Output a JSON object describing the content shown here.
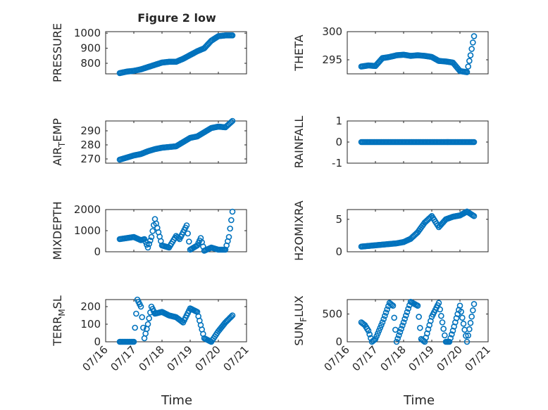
{
  "figure": {
    "title": "Figure 2 low",
    "xlabel": "Time",
    "x_ticks": [
      "07/16",
      "07/17",
      "07/18",
      "07/19",
      "07/20",
      "07/21"
    ],
    "marker_color": "#0072BD"
  },
  "chart_data": [
    {
      "type": "scatter",
      "id": "pressure",
      "ylabel": "PRESSURE",
      "ylim": [
        730,
        1010
      ],
      "yticks": [
        800,
        900,
        1000
      ],
      "grid": true,
      "x": [
        "07/16 12:00",
        "07/16 18:00",
        "07/17 00:00",
        "07/17 06:00",
        "07/17 12:00",
        "07/17 18:00",
        "07/18 00:00",
        "07/18 06:00",
        "07/18 12:00",
        "07/18 18:00",
        "07/19 00:00",
        "07/19 06:00",
        "07/19 12:00",
        "07/19 18:00",
        "07/20 00:00",
        "07/20 06:00",
        "07/20 12:00"
      ],
      "values": [
        735,
        745,
        750,
        760,
        775,
        790,
        805,
        810,
        810,
        830,
        855,
        880,
        900,
        950,
        980,
        985,
        985
      ]
    },
    {
      "type": "scatter",
      "id": "theta",
      "ylabel": "THETA",
      "ylim": [
        292.5,
        300
      ],
      "yticks": [
        295,
        300
      ],
      "grid": true,
      "x": [
        "07/16 12:00",
        "07/16 18:00",
        "07/17 00:00",
        "07/17 06:00",
        "07/17 12:00",
        "07/17 18:00",
        "07/18 00:00",
        "07/18 06:00",
        "07/18 12:00",
        "07/18 18:00",
        "07/19 00:00",
        "07/19 06:00",
        "07/19 12:00",
        "07/19 18:00",
        "07/20 00:00",
        "07/20 06:00",
        "07/20 09:00",
        "07/20 12:00"
      ],
      "values": [
        293.8,
        294.0,
        293.9,
        295.3,
        295.5,
        295.8,
        295.9,
        295.7,
        295.8,
        295.7,
        295.5,
        294.8,
        294.7,
        294.5,
        293.0,
        292.8,
        295.8,
        299.2
      ]
    },
    {
      "type": "scatter",
      "id": "air_temp",
      "ylabel": "AIR",
      "ylabel_sub": "T",
      "ylabel_tail": "EMP",
      "ylim": [
        267,
        297
      ],
      "yticks": [
        270,
        280,
        290
      ],
      "grid": true,
      "x": [
        "07/16 12:00",
        "07/16 18:00",
        "07/17 00:00",
        "07/17 06:00",
        "07/17 12:00",
        "07/17 18:00",
        "07/18 00:00",
        "07/18 06:00",
        "07/18 12:00",
        "07/18 18:00",
        "07/19 00:00",
        "07/19 06:00",
        "07/19 12:00",
        "07/19 18:00",
        "07/20 00:00",
        "07/20 06:00",
        "07/20 12:00"
      ],
      "values": [
        269.5,
        271.0,
        272.5,
        273.5,
        275.5,
        277.0,
        278.0,
        278.5,
        279.0,
        282.0,
        285.0,
        286.0,
        289.0,
        292.0,
        293.0,
        292.5,
        297.0
      ]
    },
    {
      "type": "scatter",
      "id": "rainfall",
      "ylabel": "RAINFALL",
      "ylim": [
        -1,
        1
      ],
      "yticks": [
        -1,
        0,
        1
      ],
      "grid": true,
      "x": [
        "07/16 12:00",
        "07/17 00:00",
        "07/17 12:00",
        "07/18 00:00",
        "07/18 12:00",
        "07/19 00:00",
        "07/19 12:00",
        "07/20 00:00",
        "07/20 12:00"
      ],
      "values": [
        0,
        0,
        0,
        0,
        0,
        0,
        0,
        0,
        0
      ]
    },
    {
      "type": "scatter",
      "id": "mixdepth",
      "ylabel": "MIXDEPTH",
      "ylim": [
        0,
        2000
      ],
      "yticks": [
        0,
        1000,
        2000
      ],
      "grid": true,
      "x": [
        "07/16 12:00",
        "07/16 18:00",
        "07/17 00:00",
        "07/17 06:00",
        "07/17 09:00",
        "07/17 12:00",
        "07/17 15:00",
        "07/17 18:00",
        "07/18 00:00",
        "07/18 06:00",
        "07/18 12:00",
        "07/18 15:00",
        "07/18 21:00",
        "07/19 00:00",
        "07/19 06:00",
        "07/19 09:00",
        "07/19 12:00",
        "07/19 18:00",
        "07/20 00:00",
        "07/20 06:00",
        "07/20 09:00",
        "07/20 12:00"
      ],
      "values": [
        600,
        650,
        700,
        550,
        600,
        200,
        700,
        1550,
        300,
        200,
        750,
        600,
        1250,
        100,
        300,
        650,
        50,
        200,
        100,
        100,
        700,
        1900
      ]
    },
    {
      "type": "scatter",
      "id": "h2omixra",
      "ylabel": "H2OMIXRA",
      "ylim": [
        0,
        6.5
      ],
      "yticks": [
        0,
        5
      ],
      "grid": true,
      "x": [
        "07/16 12:00",
        "07/16 18:00",
        "07/17 00:00",
        "07/17 06:00",
        "07/17 12:00",
        "07/17 18:00",
        "07/18 00:00",
        "07/18 06:00",
        "07/18 12:00",
        "07/18 18:00",
        "07/19 00:00",
        "07/19 06:00",
        "07/19 12:00",
        "07/19 18:00",
        "07/20 00:00",
        "07/20 06:00",
        "07/20 12:00"
      ],
      "values": [
        0.8,
        0.9,
        1.0,
        1.1,
        1.2,
        1.3,
        1.5,
        2.0,
        3.0,
        4.5,
        5.5,
        3.8,
        5.0,
        5.4,
        5.6,
        6.2,
        5.5
      ]
    },
    {
      "type": "scatter",
      "id": "terr_msl",
      "ylabel": "TERR",
      "ylabel_sub": "M",
      "ylabel_tail": "SL",
      "ylim": [
        0,
        240
      ],
      "yticks": [
        0,
        100,
        200
      ],
      "grid": true,
      "x": [
        "07/16 12:00",
        "07/16 18:00",
        "07/17 00:00",
        "07/17 03:00",
        "07/17 06:00",
        "07/17 09:00",
        "07/17 12:00",
        "07/17 15:00",
        "07/17 18:00",
        "07/18 00:00",
        "07/18 06:00",
        "07/18 12:00",
        "07/18 18:00",
        "07/19 00:00",
        "07/19 06:00",
        "07/19 12:00",
        "07/19 18:00",
        "07/20 00:00",
        "07/20 06:00",
        "07/20 12:00"
      ],
      "values": [
        0,
        0,
        0,
        240,
        200,
        20,
        100,
        200,
        160,
        170,
        150,
        140,
        110,
        190,
        170,
        20,
        0,
        60,
        110,
        150
      ]
    },
    {
      "type": "scatter",
      "id": "sun_flux",
      "ylabel": "SUN",
      "ylabel_sub": "F",
      "ylabel_tail": "LUX",
      "ylim": [
        0,
        760
      ],
      "yticks": [
        0,
        500
      ],
      "grid": true,
      "x": [
        "07/16 12:00",
        "07/16 15:00",
        "07/16 18:00",
        "07/16 21:00",
        "07/17 00:00",
        "07/17 06:00",
        "07/17 12:00",
        "07/17 15:00",
        "07/17 18:00",
        "07/18 00:00",
        "07/18 06:00",
        "07/18 12:00",
        "07/18 15:00",
        "07/18 18:00",
        "07/19 00:00",
        "07/19 06:00",
        "07/19 12:00",
        "07/19 15:00",
        "07/19 18:00",
        "07/20 00:00",
        "07/20 06:00",
        "07/20 12:00"
      ],
      "values": [
        350,
        300,
        200,
        0,
        50,
        350,
        700,
        650,
        0,
        350,
        720,
        650,
        50,
        0,
        450,
        700,
        0,
        0,
        200,
        650,
        0,
        680
      ]
    }
  ]
}
